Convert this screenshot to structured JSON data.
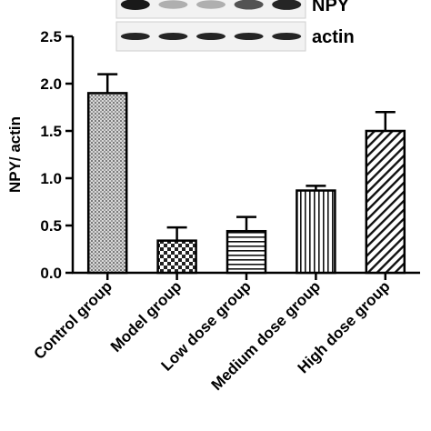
{
  "blot": {
    "lanes": 5,
    "rows": [
      {
        "label": "NPY",
        "intensity": [
          1.0,
          0.35,
          0.35,
          0.75,
          0.95
        ]
      },
      {
        "label": "actin",
        "intensity": [
          0.95,
          0.95,
          0.95,
          0.95,
          0.95
        ]
      }
    ]
  },
  "chart_data": {
    "type": "bar",
    "title": "",
    "xlabel": "",
    "ylabel": "NPY/ actin",
    "ylim": [
      0,
      2.5
    ],
    "yticks": [
      "0.0",
      "0.5",
      "1.0",
      "1.5",
      "2.0",
      "2.5"
    ],
    "categories": [
      "Control group",
      "Model group",
      "Low dose group",
      "Medium dose group",
      "High dose group"
    ],
    "values": [
      1.9,
      0.34,
      0.44,
      0.87,
      1.5
    ],
    "errors": [
      0.2,
      0.14,
      0.15,
      0.05,
      0.2
    ],
    "patterns": [
      "crosshatch-fine",
      "checker",
      "horizontal-lines",
      "vertical-lines",
      "diagonal-lines"
    ]
  }
}
